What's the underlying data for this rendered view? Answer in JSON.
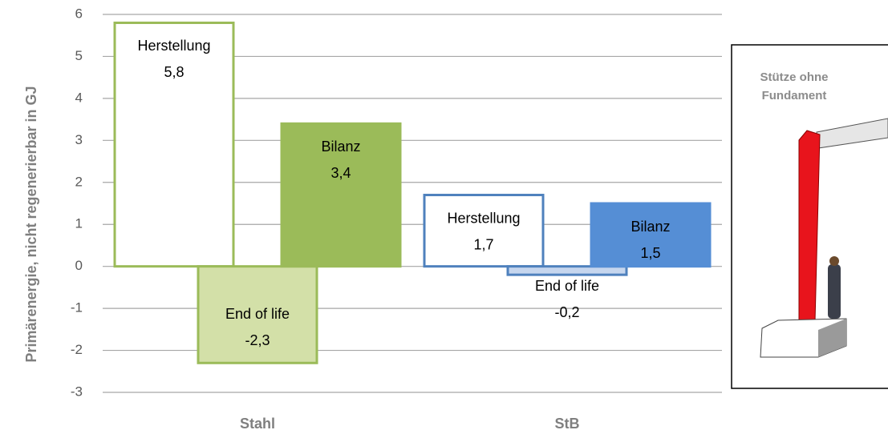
{
  "chart_data": {
    "type": "bar",
    "y_label": "Primärenergie, nicht regenerierbar in GJ",
    "categories": [
      "Stahl",
      "StB"
    ],
    "series": [
      {
        "name": "Herstellung",
        "values": [
          5.8,
          1.7
        ],
        "value_labels": [
          "5,8",
          "1,7"
        ],
        "colors": [
          "#9bbb59",
          "#4f81bd"
        ],
        "fills": [
          "#ffffff",
          "#ffffff"
        ]
      },
      {
        "name": "End of life",
        "values": [
          -2.3,
          -0.2
        ],
        "value_labels": [
          "-2,3",
          "-0,2"
        ],
        "colors": [
          "#9bbb59",
          "#4f81bd"
        ],
        "fills": [
          "#d3e0a8",
          "#c6d6ee"
        ]
      },
      {
        "name": "Bilanz",
        "values": [
          3.4,
          1.5
        ],
        "value_labels": [
          "3,4",
          "1,5"
        ],
        "colors": [
          "#9bbb59",
          "#558ed5"
        ],
        "fills": [
          "#9bbb59",
          "#558ed5"
        ]
      }
    ],
    "ylim": [
      -3,
      6
    ],
    "yticks": [
      -3,
      -2,
      -1,
      0,
      1,
      2,
      3,
      4,
      5,
      6
    ],
    "grid": true
  },
  "inset": {
    "caption": "Stütze ohne Fundament"
  }
}
